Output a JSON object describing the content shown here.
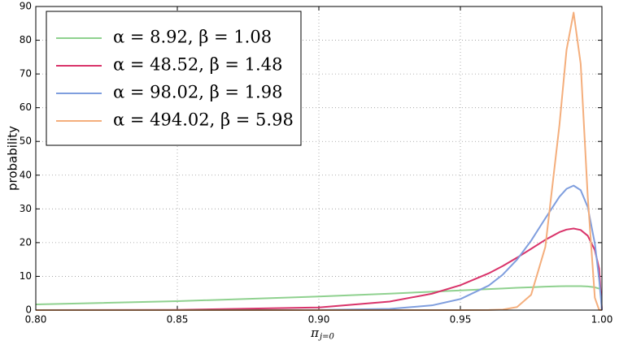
{
  "chart_data": {
    "type": "line",
    "ylabel": "probability",
    "xlabel": "π",
    "xlabel_subscript": "j=0",
    "x": [
      0.8,
      0.85,
      0.9,
      0.925,
      0.94,
      0.95,
      0.96,
      0.965,
      0.97,
      0.975,
      0.98,
      0.985,
      0.9875,
      0.99,
      0.9925,
      0.995,
      0.9975,
      0.999,
      1.0
    ],
    "series": [
      {
        "name": "α = 8.92, β = 1.08",
        "color": "#8fd18f",
        "values": [
          1.67,
          2.64,
          4.02,
          4.88,
          5.44,
          5.83,
          6.23,
          6.42,
          6.61,
          6.78,
          6.94,
          7.06,
          7.1,
          7.11,
          7.09,
          7.0,
          6.76,
          6.35,
          null
        ]
      },
      {
        "name": "α = 48.52, β = 1.48",
        "color": "#d9336a",
        "values": [
          0.004,
          0.063,
          0.79,
          2.52,
          4.87,
          7.38,
          10.9,
          13.09,
          15.54,
          18.17,
          20.83,
          23.11,
          23.87,
          24.18,
          23.75,
          22.03,
          17.8,
          12.31,
          0
        ]
      },
      {
        "name": "α = 98.02, β = 1.98",
        "color": "#7f9ede",
        "values": [
          0,
          0.0002,
          0.034,
          0.37,
          1.4,
          3.27,
          7.26,
          10.53,
          14.95,
          20.59,
          27.19,
          33.61,
          35.94,
          36.91,
          35.55,
          30.52,
          19.73,
          9.3,
          0
        ]
      },
      {
        "name": "α = 494.02, β = 5.98",
        "color": "#f4ae7c",
        "values": [
          0,
          0,
          0,
          0,
          0,
          0.0004,
          0.023,
          0.15,
          0.9,
          4.55,
          18.69,
          54.9,
          77.1,
          88.2,
          73.0,
          33.5,
          3.66,
          0.08,
          0
        ]
      }
    ],
    "xlim": [
      0.8,
      1.0
    ],
    "xticks": [
      {
        "value": 0.8,
        "label": "0.80"
      },
      {
        "value": 0.85,
        "label": "0.85"
      },
      {
        "value": 0.9,
        "label": "0.90"
      },
      {
        "value": 0.95,
        "label": "0.95"
      },
      {
        "value": 1.0,
        "label": "1.00"
      }
    ],
    "ylim": [
      0,
      90
    ],
    "yticks": [
      0,
      10,
      20,
      30,
      40,
      50,
      60,
      70,
      80,
      90
    ],
    "grid": true,
    "legend": "upper-left"
  }
}
